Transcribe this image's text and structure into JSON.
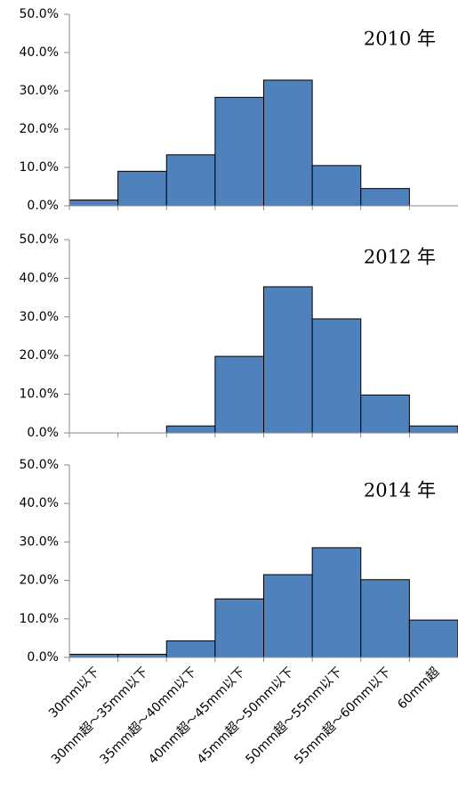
{
  "chart_data": [
    {
      "type": "bar",
      "title": "2010 年",
      "values": [
        1.5,
        9,
        13.3,
        28.3,
        32.8,
        10.5,
        4.5,
        0
      ],
      "color": "#4f81bd",
      "ylim": [
        0,
        50
      ],
      "yticks": [
        {
          "value": 0,
          "label": "0.0%"
        },
        {
          "value": 10,
          "label": "10.0%"
        },
        {
          "value": 20,
          "label": "20.0%"
        },
        {
          "value": 30,
          "label": "30.0%"
        },
        {
          "value": 40,
          "label": "40.0%"
        },
        {
          "value": 50,
          "label": "50.0%"
        }
      ]
    },
    {
      "type": "bar",
      "title": "2012 年",
      "values": [
        0,
        0,
        1.8,
        19.8,
        37.8,
        29.5,
        9.8,
        1.8
      ],
      "color": "#4f81bd",
      "ylim": [
        0,
        50
      ],
      "yticks": [
        {
          "value": 0,
          "label": "0.0%"
        },
        {
          "value": 10,
          "label": "10.0%"
        },
        {
          "value": 20,
          "label": "20.0%"
        },
        {
          "value": 30,
          "label": "30.0%"
        },
        {
          "value": 40,
          "label": "40.0%"
        },
        {
          "value": 50,
          "label": "50.0%"
        }
      ]
    },
    {
      "type": "bar",
      "title": "2014 年",
      "categories": [
        "30mm以下",
        "30mm超～35mm以下",
        "35mm超～40mm以下",
        "40mm超～45mm以下",
        "45mm超～50mm以下",
        "50mm超～55mm以下",
        "55mm超～60mm以下",
        "60mm超"
      ],
      "values": [
        0.8,
        0.8,
        4.3,
        15.2,
        21.5,
        28.5,
        20.2,
        9.7
      ],
      "color": "#4f81bd",
      "ylim": [
        0,
        50
      ],
      "yticks": [
        {
          "value": 0,
          "label": "0.0%"
        },
        {
          "value": 10,
          "label": "10.0%"
        },
        {
          "value": 20,
          "label": "20.0%"
        },
        {
          "value": 30,
          "label": "30.0%"
        },
        {
          "value": 40,
          "label": "40.0%"
        },
        {
          "value": 50,
          "label": "50.0%"
        }
      ]
    }
  ]
}
